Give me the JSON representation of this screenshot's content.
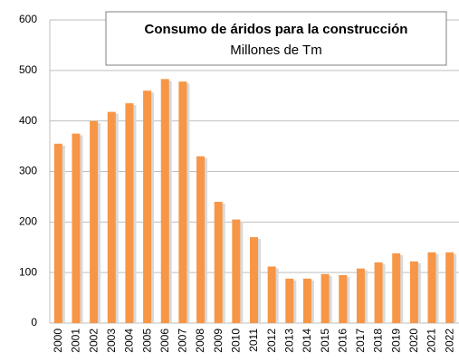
{
  "chart_data": {
    "type": "bar",
    "title": "Consumo de áridos para la construcción",
    "subtitle": "Millones de Tm",
    "categories": [
      "2000",
      "2001",
      "2002",
      "2003",
      "2004",
      "2005",
      "2006",
      "2007",
      "2008",
      "2009",
      "2010",
      "2011",
      "2012",
      "2013",
      "2014",
      "2015",
      "2016",
      "2017",
      "2018",
      "2019",
      "2020",
      "2021",
      "2022"
    ],
    "values": [
      355,
      375,
      400,
      418,
      435,
      460,
      483,
      478,
      330,
      240,
      205,
      170,
      112,
      88,
      88,
      97,
      95,
      108,
      120,
      138,
      122,
      140,
      140
    ],
    "color": "#f79646",
    "ylim": [
      0,
      600
    ],
    "yticks": [
      0,
      100,
      200,
      300,
      400,
      500,
      600
    ],
    "grid": true
  }
}
